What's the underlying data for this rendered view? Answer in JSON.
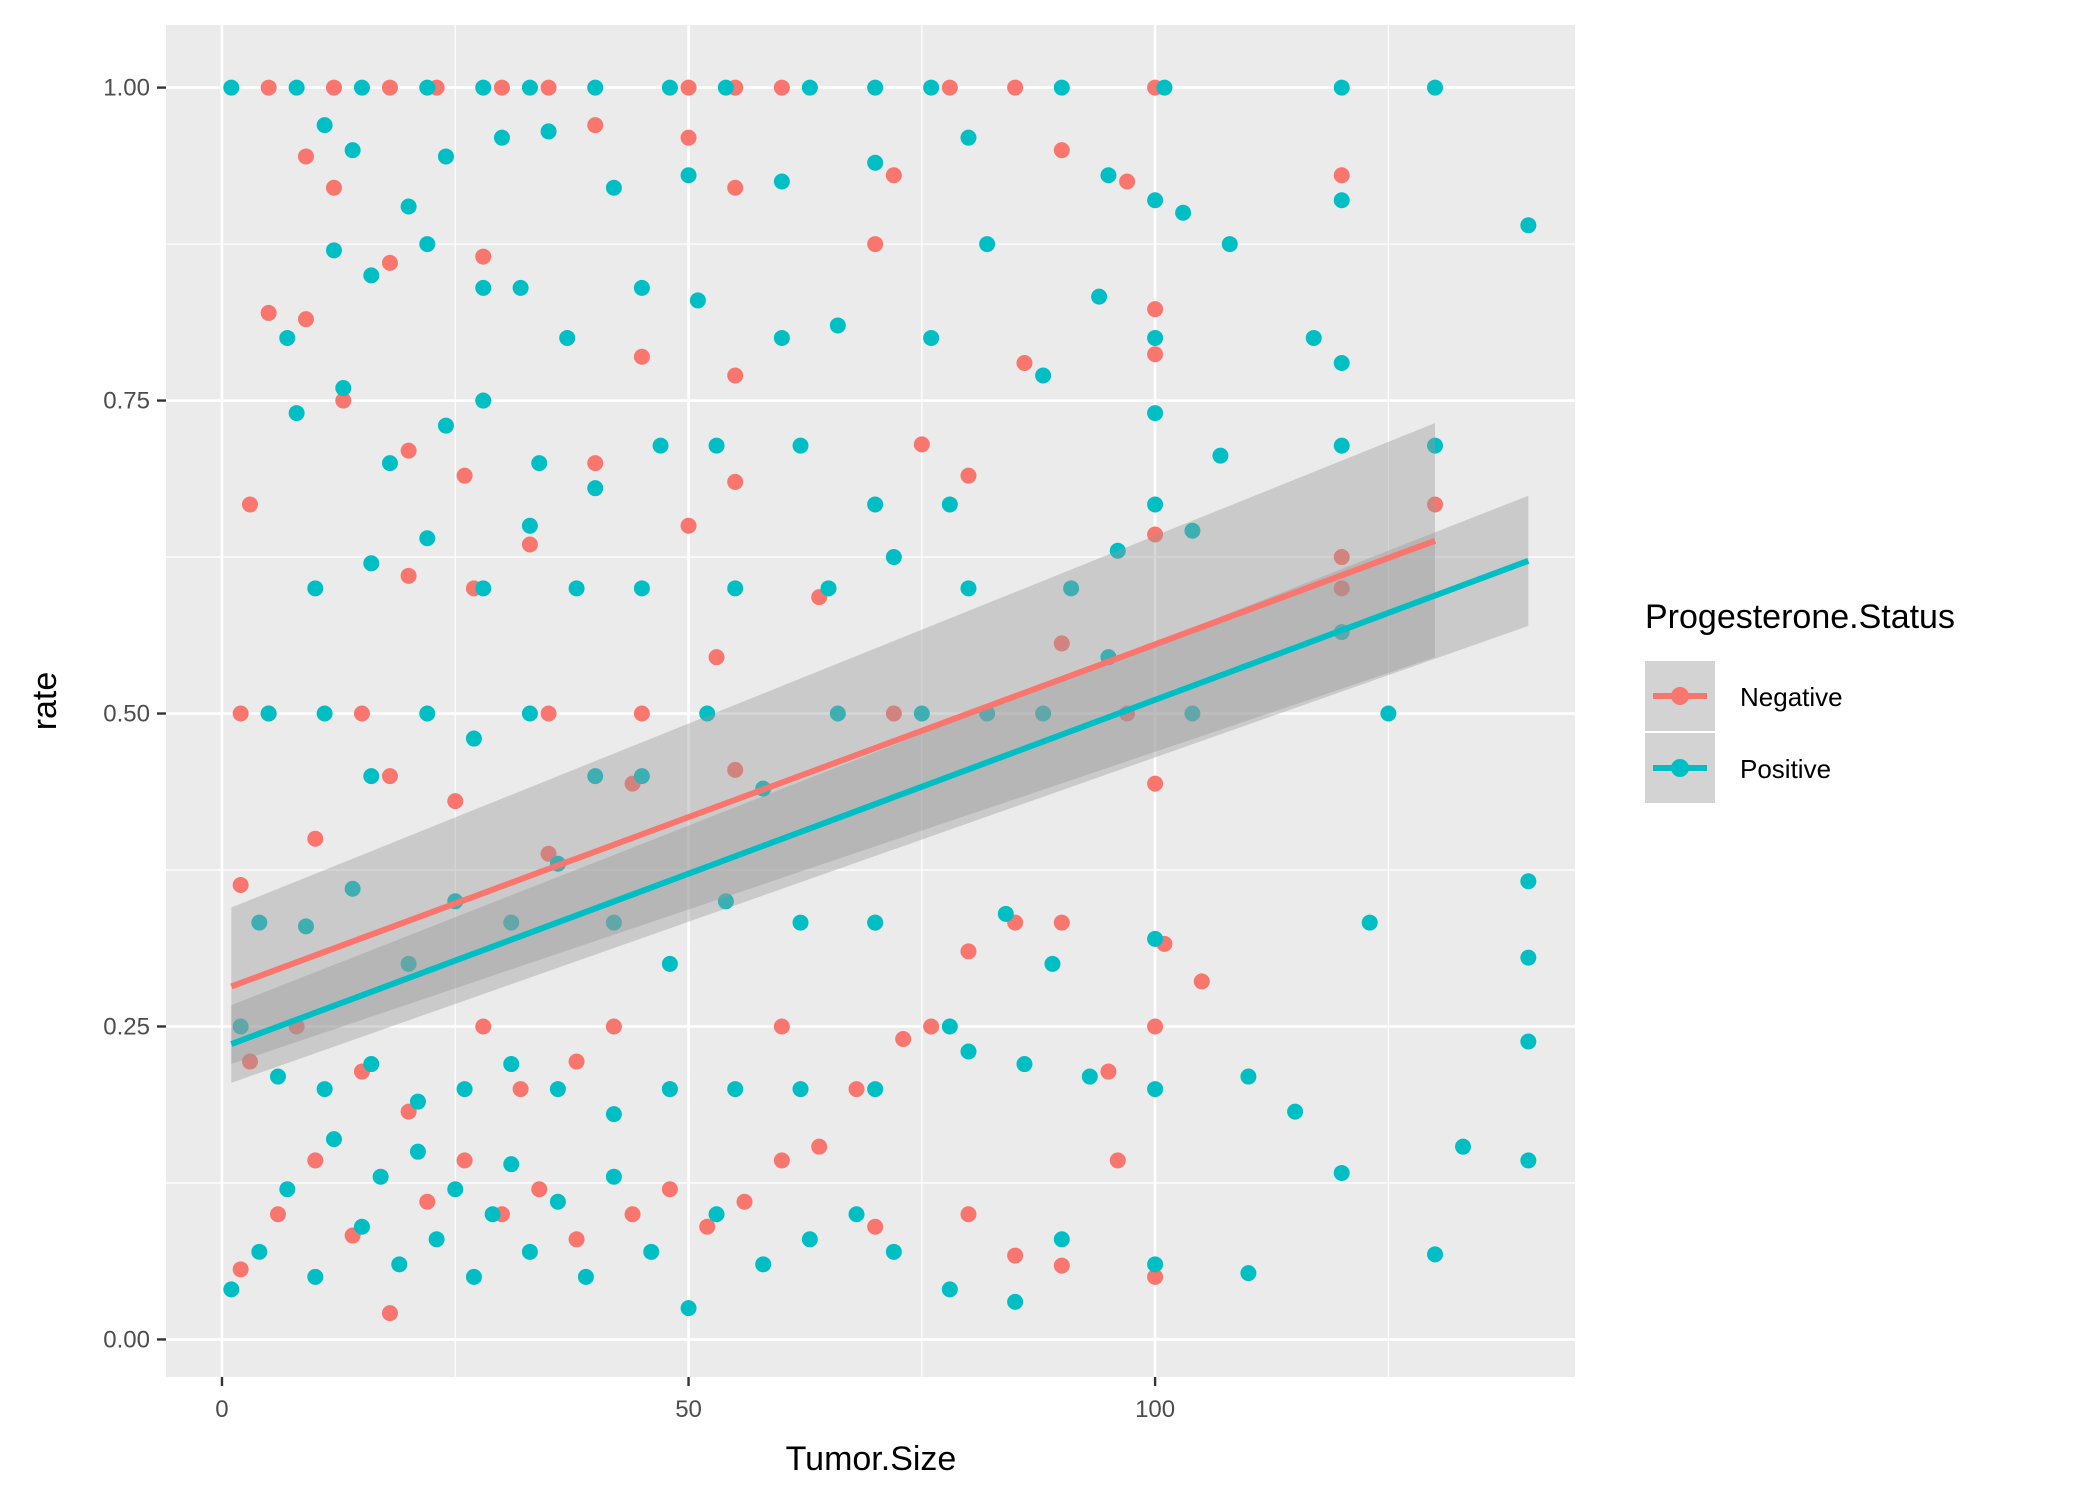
{
  "chart_data": {
    "type": "scatter",
    "title": "",
    "xlabel": "Tumor.Size",
    "ylabel": "rate",
    "xlim": [
      -6,
      145
    ],
    "ylim": [
      -0.03,
      1.05
    ],
    "x_ticks": [
      0,
      50,
      100
    ],
    "x_tick_labels": [
      "0",
      "50",
      "100"
    ],
    "y_ticks": [
      0,
      0.25,
      0.5,
      0.75,
      1
    ],
    "y_tick_labels": [
      "0.00",
      "0.25",
      "0.50",
      "0.75",
      "1.00"
    ],
    "grid": true,
    "panel_background": "#EBEBEB",
    "legend": {
      "title": "Progesterone.Status",
      "position": "right"
    },
    "series": [
      {
        "name": "Negative",
        "color": "#F8766D",
        "trend": {
          "x": [
            1,
            130
          ],
          "y": [
            0.282,
            0.638
          ],
          "ci_low": [
            0.22,
            0.545
          ],
          "ci_high": [
            0.345,
            0.732
          ]
        },
        "points": [
          [
            5,
            1.0
          ],
          [
            12,
            1.0
          ],
          [
            18,
            1.0
          ],
          [
            23,
            1.0
          ],
          [
            30,
            1.0
          ],
          [
            35,
            1.0
          ],
          [
            50,
            1.0
          ],
          [
            55,
            1.0
          ],
          [
            60,
            1.0
          ],
          [
            78,
            1.0
          ],
          [
            85,
            1.0
          ],
          [
            100,
            1.0
          ],
          [
            9,
            0.945
          ],
          [
            12,
            0.92
          ],
          [
            40,
            0.97
          ],
          [
            50,
            0.96
          ],
          [
            55,
            0.92
          ],
          [
            70,
            0.875
          ],
          [
            72,
            0.93
          ],
          [
            90,
            0.95
          ],
          [
            97,
            0.925
          ],
          [
            120,
            0.93
          ],
          [
            5,
            0.82
          ],
          [
            9,
            0.815
          ],
          [
            18,
            0.86
          ],
          [
            28,
            0.865
          ],
          [
            45,
            0.785
          ],
          [
            55,
            0.77
          ],
          [
            86,
            0.78
          ],
          [
            100,
            0.823
          ],
          [
            100,
            0.787
          ],
          [
            3,
            0.667
          ],
          [
            13,
            0.75
          ],
          [
            20,
            0.71
          ],
          [
            26,
            0.69
          ],
          [
            33,
            0.635
          ],
          [
            40,
            0.7
          ],
          [
            50,
            0.65
          ],
          [
            55,
            0.685
          ],
          [
            75,
            0.715
          ],
          [
            80,
            0.69
          ],
          [
            100,
            0.643
          ],
          [
            120,
            0.625
          ],
          [
            130,
            0.667
          ],
          [
            2,
            0.5
          ],
          [
            5,
            0.5
          ],
          [
            15,
            0.5
          ],
          [
            20,
            0.61
          ],
          [
            27,
            0.6
          ],
          [
            35,
            0.5
          ],
          [
            45,
            0.5
          ],
          [
            53,
            0.545
          ],
          [
            64,
            0.593
          ],
          [
            72,
            0.5
          ],
          [
            90,
            0.556
          ],
          [
            97,
            0.5
          ],
          [
            120,
            0.6
          ],
          [
            2,
            0.363
          ],
          [
            10,
            0.4
          ],
          [
            18,
            0.45
          ],
          [
            25,
            0.43
          ],
          [
            35,
            0.388
          ],
          [
            44,
            0.444
          ],
          [
            55,
            0.455
          ],
          [
            70,
            0.333
          ],
          [
            80,
            0.31
          ],
          [
            85,
            0.333
          ],
          [
            90,
            0.333
          ],
          [
            100,
            0.444
          ],
          [
            101,
            0.316
          ],
          [
            105,
            0.286
          ],
          [
            3,
            0.222
          ],
          [
            8,
            0.25
          ],
          [
            15,
            0.214
          ],
          [
            20,
            0.182
          ],
          [
            28,
            0.25
          ],
          [
            32,
            0.2
          ],
          [
            38,
            0.222
          ],
          [
            42,
            0.25
          ],
          [
            48,
            0.2
          ],
          [
            60,
            0.25
          ],
          [
            68,
            0.2
          ],
          [
            73,
            0.24
          ],
          [
            76,
            0.25
          ],
          [
            95,
            0.214
          ],
          [
            100,
            0.25
          ],
          [
            2,
            0.056
          ],
          [
            6,
            0.1
          ],
          [
            10,
            0.143
          ],
          [
            14,
            0.083
          ],
          [
            18,
            0.021
          ],
          [
            22,
            0.11
          ],
          [
            26,
            0.143
          ],
          [
            30,
            0.1
          ],
          [
            34,
            0.12
          ],
          [
            38,
            0.08
          ],
          [
            44,
            0.1
          ],
          [
            48,
            0.12
          ],
          [
            52,
            0.09
          ],
          [
            56,
            0.11
          ],
          [
            60,
            0.143
          ],
          [
            64,
            0.154
          ],
          [
            70,
            0.09
          ],
          [
            80,
            0.1
          ],
          [
            85,
            0.067
          ],
          [
            90,
            0.059
          ],
          [
            96,
            0.143
          ],
          [
            100,
            0.05
          ]
        ]
      },
      {
        "name": "Positive",
        "color": "#00BFC4",
        "trend": {
          "x": [
            1,
            140
          ],
          "y": [
            0.236,
            0.622
          ],
          "ci_low": [
            0.205,
            0.57
          ],
          "ci_high": [
            0.267,
            0.674
          ]
        },
        "points": [
          [
            1,
            1.0
          ],
          [
            8,
            1.0
          ],
          [
            15,
            1.0
          ],
          [
            22,
            1.0
          ],
          [
            28,
            1.0
          ],
          [
            33,
            1.0
          ],
          [
            40,
            1.0
          ],
          [
            48,
            1.0
          ],
          [
            54,
            1.0
          ],
          [
            63,
            1.0
          ],
          [
            70,
            1.0
          ],
          [
            76,
            1.0
          ],
          [
            90,
            1.0
          ],
          [
            101,
            1.0
          ],
          [
            120,
            1.0
          ],
          [
            130,
            1.0
          ],
          [
            11,
            0.97
          ],
          [
            14,
            0.95
          ],
          [
            20,
            0.905
          ],
          [
            24,
            0.945
          ],
          [
            30,
            0.96
          ],
          [
            35,
            0.965
          ],
          [
            42,
            0.92
          ],
          [
            50,
            0.93
          ],
          [
            60,
            0.925
          ],
          [
            70,
            0.94
          ],
          [
            80,
            0.96
          ],
          [
            95,
            0.93
          ],
          [
            100,
            0.91
          ],
          [
            103,
            0.9
          ],
          [
            120,
            0.91
          ],
          [
            140,
            0.89
          ],
          [
            7,
            0.8
          ],
          [
            12,
            0.87
          ],
          [
            16,
            0.85
          ],
          [
            22,
            0.875
          ],
          [
            28,
            0.84
          ],
          [
            32,
            0.84
          ],
          [
            37,
            0.8
          ],
          [
            45,
            0.84
          ],
          [
            51,
            0.83
          ],
          [
            60,
            0.8
          ],
          [
            66,
            0.81
          ],
          [
            76,
            0.8
          ],
          [
            82,
            0.875
          ],
          [
            94,
            0.833
          ],
          [
            100,
            0.8
          ],
          [
            108,
            0.875
          ],
          [
            117,
            0.8
          ],
          [
            120,
            0.78
          ],
          [
            8,
            0.74
          ],
          [
            13,
            0.76
          ],
          [
            18,
            0.7
          ],
          [
            24,
            0.73
          ],
          [
            28,
            0.75
          ],
          [
            34,
            0.7
          ],
          [
            40,
            0.68
          ],
          [
            47,
            0.714
          ],
          [
            53,
            0.714
          ],
          [
            62,
            0.714
          ],
          [
            70,
            0.667
          ],
          [
            78,
            0.667
          ],
          [
            88,
            0.77
          ],
          [
            100,
            0.74
          ],
          [
            107,
            0.706
          ],
          [
            120,
            0.714
          ],
          [
            130,
            0.714
          ],
          [
            10,
            0.6
          ],
          [
            16,
            0.62
          ],
          [
            22,
            0.64
          ],
          [
            28,
            0.6
          ],
          [
            33,
            0.65
          ],
          [
            38,
            0.6
          ],
          [
            45,
            0.6
          ],
          [
            55,
            0.6
          ],
          [
            65,
            0.6
          ],
          [
            72,
            0.625
          ],
          [
            80,
            0.6
          ],
          [
            91,
            0.6
          ],
          [
            96,
            0.63
          ],
          [
            100,
            0.667
          ],
          [
            104,
            0.646
          ],
          [
            120,
            0.565
          ],
          [
            125,
            0.5
          ],
          [
            5,
            0.5
          ],
          [
            11,
            0.5
          ],
          [
            16,
            0.45
          ],
          [
            22,
            0.5
          ],
          [
            27,
            0.48
          ],
          [
            33,
            0.5
          ],
          [
            40,
            0.45
          ],
          [
            45,
            0.45
          ],
          [
            52,
            0.5
          ],
          [
            58,
            0.44
          ],
          [
            66,
            0.5
          ],
          [
            75,
            0.5
          ],
          [
            82,
            0.5
          ],
          [
            88,
            0.5
          ],
          [
            95,
            0.545
          ],
          [
            104,
            0.5
          ],
          [
            4,
            0.333
          ],
          [
            9,
            0.33
          ],
          [
            14,
            0.36
          ],
          [
            20,
            0.3
          ],
          [
            25,
            0.35
          ],
          [
            31,
            0.333
          ],
          [
            36,
            0.38
          ],
          [
            42,
            0.333
          ],
          [
            48,
            0.3
          ],
          [
            54,
            0.35
          ],
          [
            62,
            0.333
          ],
          [
            70,
            0.333
          ],
          [
            78,
            0.25
          ],
          [
            84,
            0.34
          ],
          [
            89,
            0.3
          ],
          [
            100,
            0.32
          ],
          [
            123,
            0.333
          ],
          [
            140,
            0.366
          ],
          [
            140,
            0.305
          ],
          [
            2,
            0.25
          ],
          [
            6,
            0.21
          ],
          [
            11,
            0.2
          ],
          [
            16,
            0.22
          ],
          [
            21,
            0.19
          ],
          [
            26,
            0.2
          ],
          [
            31,
            0.22
          ],
          [
            36,
            0.2
          ],
          [
            42,
            0.18
          ],
          [
            48,
            0.2
          ],
          [
            55,
            0.2
          ],
          [
            62,
            0.2
          ],
          [
            70,
            0.2
          ],
          [
            80,
            0.23
          ],
          [
            86,
            0.22
          ],
          [
            93,
            0.21
          ],
          [
            100,
            0.2
          ],
          [
            110,
            0.21
          ],
          [
            115,
            0.182
          ],
          [
            140,
            0.238
          ],
          [
            1,
            0.04
          ],
          [
            4,
            0.07
          ],
          [
            7,
            0.12
          ],
          [
            10,
            0.05
          ],
          [
            12,
            0.16
          ],
          [
            15,
            0.09
          ],
          [
            17,
            0.13
          ],
          [
            19,
            0.06
          ],
          [
            21,
            0.15
          ],
          [
            23,
            0.08
          ],
          [
            25,
            0.12
          ],
          [
            27,
            0.05
          ],
          [
            29,
            0.1
          ],
          [
            31,
            0.14
          ],
          [
            33,
            0.07
          ],
          [
            36,
            0.11
          ],
          [
            39,
            0.05
          ],
          [
            42,
            0.13
          ],
          [
            46,
            0.07
          ],
          [
            50,
            0.025
          ],
          [
            53,
            0.1
          ],
          [
            58,
            0.06
          ],
          [
            63,
            0.08
          ],
          [
            68,
            0.1
          ],
          [
            72,
            0.07
          ],
          [
            78,
            0.04
          ],
          [
            85,
            0.03
          ],
          [
            90,
            0.08
          ],
          [
            100,
            0.06
          ],
          [
            110,
            0.053
          ],
          [
            120,
            0.133
          ],
          [
            130,
            0.068
          ],
          [
            133,
            0.154
          ],
          [
            140,
            0.143
          ]
        ]
      }
    ]
  }
}
